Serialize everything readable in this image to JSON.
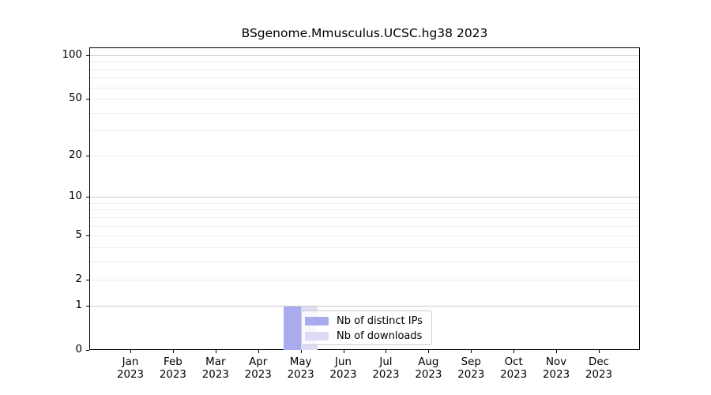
{
  "chart_data": {
    "type": "bar",
    "title": "BSgenome.Mmusculus.UCSC.hg38 2023",
    "categories": [
      "Jan",
      "Feb",
      "Mar",
      "Apr",
      "May",
      "Jun",
      "Jul",
      "Aug",
      "Sep",
      "Oct",
      "Nov",
      "Dec"
    ],
    "x_year_label": "2023",
    "series": [
      {
        "name": "Nb of distinct IPs",
        "color": "#aaaaee",
        "values": [
          0,
          0,
          0,
          0,
          1,
          0,
          0,
          0,
          0,
          0,
          0,
          0
        ]
      },
      {
        "name": "Nb of downloads",
        "color": "#dcdcf7",
        "values": [
          0,
          0,
          0,
          0,
          1,
          0,
          0,
          0,
          0,
          0,
          0,
          0
        ]
      }
    ],
    "y_axis": {
      "scale": "log10(1+x)",
      "tick_values": [
        0,
        1,
        2,
        5,
        10,
        20,
        50,
        100
      ],
      "grid_major_values": [
        1,
        10,
        100
      ],
      "grid_minor_values": [
        2,
        3,
        4,
        5,
        6,
        7,
        8,
        9,
        20,
        30,
        40,
        50,
        60,
        70,
        80,
        90
      ],
      "top_value": 113
    },
    "legend": {
      "entries": [
        "Nb of distinct IPs",
        "Nb of downloads"
      ],
      "position": "lower center"
    },
    "colors": {
      "grid_major": "#cccccc",
      "grid_minor": "#ededed",
      "spine": "#000000",
      "background": "#ffffff"
    },
    "grid": "horizontal only"
  }
}
